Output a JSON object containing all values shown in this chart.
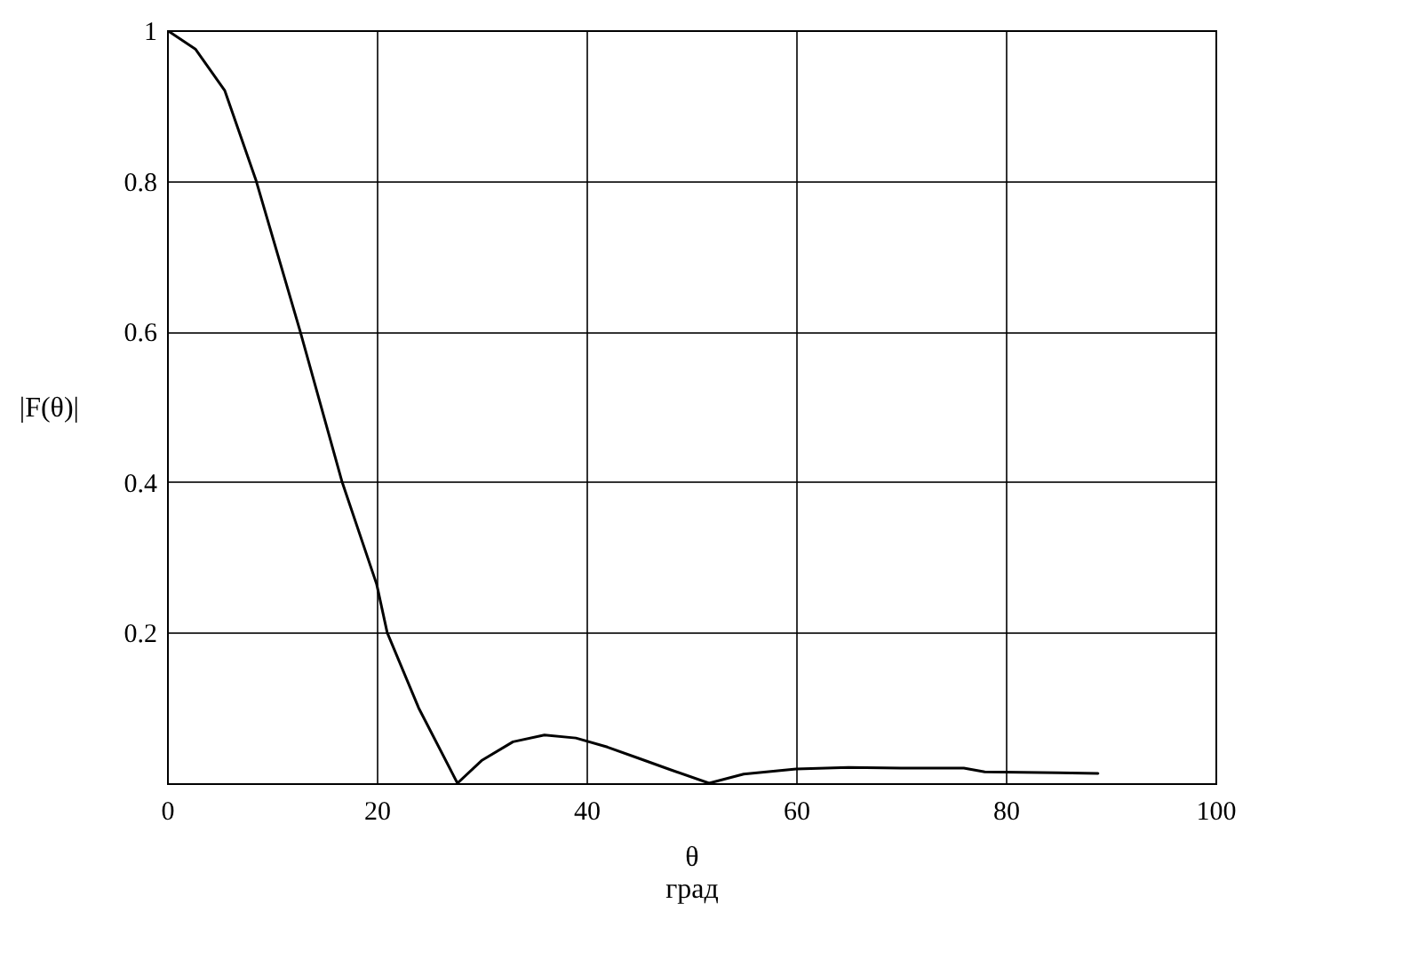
{
  "chart_data": {
    "type": "line",
    "xlabel": "θ\nград",
    "ylabel": "|F(θ)|",
    "x": [
      0,
      2.7,
      5.5,
      8.5,
      12.7,
      16.7,
      20,
      21,
      24,
      27.7,
      30,
      33,
      36,
      39,
      42,
      45,
      48,
      51.7,
      55,
      60,
      65,
      70,
      76,
      78,
      85,
      88.8
    ],
    "series": [
      {
        "color": "#000000",
        "values": [
          1,
          0.975,
          0.92,
          0.8,
          0.6,
          0.4,
          0.264,
          0.2,
          0.1,
          0,
          0.03,
          0.055,
          0.064,
          0.06,
          0.048,
          0.033,
          0.018,
          0,
          0.012,
          0.019,
          0.021,
          0.02,
          0.02,
          0.015,
          0.014,
          0.013
        ]
      }
    ],
    "xlim": [
      0,
      100
    ],
    "xticks": [
      0,
      20,
      40,
      60,
      80,
      100
    ],
    "ylim": [
      0,
      1
    ],
    "yticks": [
      {
        "value": 0,
        "label": null
      },
      0.2,
      0.4,
      0.6,
      0.8,
      1
    ],
    "grid": true,
    "marker": "none",
    "line_style": "solid"
  }
}
